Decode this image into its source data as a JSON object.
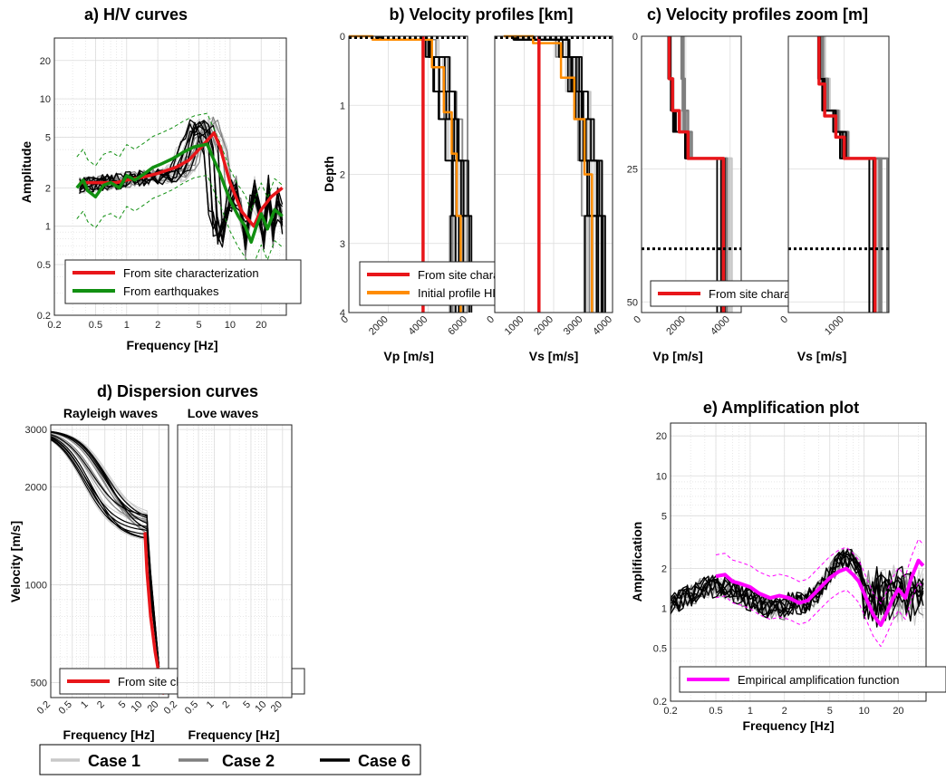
{
  "figure": {
    "legend": [
      {
        "label": "Case 1",
        "color": "#c8c8c8"
      },
      {
        "label": "Case 2",
        "color": "#7f7f7f"
      },
      {
        "label": "Case 6",
        "color": "#000000"
      }
    ]
  },
  "colors": {
    "site": "#e8161a",
    "earthquake": "#119011",
    "hhs": "#ff8c00",
    "empirical": "#ff00ff",
    "case1": "#c8c8c8",
    "case2": "#7f7f7f",
    "case6": "#000000"
  },
  "chart_data": [
    {
      "id": "hv",
      "type": "line",
      "title": "a) H/V curves",
      "xlabel": "Frequency [Hz]",
      "ylabel": "Amplitude",
      "xscale": "log",
      "yscale": "log",
      "xlim": [
        0.2,
        35
      ],
      "ylim": [
        0.2,
        30
      ],
      "xticks": [
        0.2,
        0.5,
        1,
        2,
        5,
        10,
        20
      ],
      "xticklabels": [
        "0.2",
        "0.5",
        "1",
        "2",
        "5",
        "10",
        "20"
      ],
      "yticks": [
        0.2,
        0.5,
        1,
        2,
        5,
        10,
        20
      ],
      "yticklabels": [
        "0.2",
        "0.5",
        "1",
        "2",
        "5",
        "10",
        "20"
      ],
      "grid": true,
      "legend_position": "bottom",
      "series": [
        {
          "name": "From site characterization",
          "color": "#e8161a",
          "x": [
            0.35,
            0.5,
            0.8,
            1.0,
            1.5,
            2,
            3,
            4,
            5,
            6,
            7,
            8,
            10,
            13,
            17,
            20,
            25,
            32
          ],
          "y": [
            2.2,
            2.2,
            2.2,
            2.3,
            2.45,
            2.6,
            2.9,
            3.3,
            4.0,
            4.7,
            5.4,
            4.2,
            2.2,
            1.3,
            1.0,
            1.35,
            1.7,
            2.0
          ]
        },
        {
          "name": "From earthquakes",
          "color": "#119011",
          "x": [
            0.33,
            0.38,
            0.42,
            0.5,
            0.6,
            0.7,
            0.85,
            1.0,
            1.2,
            1.5,
            1.8,
            2.2,
            2.8,
            3.5,
            4.5,
            6.0,
            7.0,
            8.0,
            9.0,
            10,
            12,
            14,
            16,
            18,
            20,
            23,
            27,
            32
          ],
          "y": [
            2.0,
            2.3,
            1.9,
            1.7,
            2.1,
            2.2,
            2.0,
            2.5,
            2.3,
            2.6,
            2.9,
            3.1,
            3.4,
            3.8,
            4.2,
            4.4,
            3.3,
            2.6,
            2.0,
            1.6,
            1.2,
            1.0,
            0.75,
            1.0,
            1.25,
            0.95,
            1.35,
            1.2
          ]
        }
      ]
    },
    {
      "id": "vp_km",
      "type": "line",
      "title": "b) Velocity profiles [km]",
      "xlabel": "Vp [m/s]",
      "ylabel": "Depth",
      "xlim": [
        0,
        6000
      ],
      "ylim": [
        0,
        4
      ],
      "xticks": [
        0,
        2000,
        4000,
        6000
      ],
      "xticklabels": [
        "0",
        "2000",
        "4000",
        "6000"
      ],
      "yticks": [
        0,
        1,
        2,
        3,
        4
      ],
      "yticklabels": [
        "0",
        "1",
        "2",
        "3",
        "4"
      ],
      "grid": true,
      "legend_position": "bottom",
      "series": [
        {
          "name": "From site characterization",
          "color": "#e8161a",
          "x": [
            3750,
            3750
          ],
          "y": [
            0,
            4
          ]
        },
        {
          "name": "Initial profile HHS",
          "color": "#ff8c00",
          "x": [
            0,
            1200,
            1200,
            4200,
            4200,
            4800,
            4800,
            5200,
            5200,
            5450,
            5450,
            5650,
            5650
          ],
          "y": [
            0,
            0,
            0.05,
            0.05,
            0.45,
            0.45,
            1.1,
            1.1,
            1.7,
            1.7,
            2.6,
            2.6,
            4
          ]
        }
      ]
    },
    {
      "id": "vs_km",
      "type": "line",
      "title": "",
      "xlabel": "Vs [m/s]",
      "ylabel": "",
      "xlim": [
        0,
        4000
      ],
      "ylim": [
        0,
        4
      ],
      "xticks": [
        0,
        1000,
        2000,
        3000,
        4000
      ],
      "xticklabels": [
        "0",
        "1000",
        "2000",
        "3000",
        "4000"
      ],
      "grid": true,
      "series": [
        {
          "name": "From site characterization",
          "color": "#e8161a",
          "x": [
            1500,
            1500
          ],
          "y": [
            0,
            4
          ]
        },
        {
          "name": "Initial profile HHS",
          "color": "#ff8c00",
          "x": [
            300,
            1300,
            1300,
            2250,
            2250,
            2700,
            2700,
            3050,
            3050,
            3300,
            3300
          ],
          "y": [
            0,
            0,
            0.1,
            0.1,
            0.6,
            0.6,
            1.2,
            1.2,
            2.0,
            2.0,
            4
          ]
        }
      ]
    },
    {
      "id": "vp_m",
      "type": "line",
      "title": "c) Velocity profiles zoom [m]",
      "xlabel": "Vp [m/s]",
      "ylabel": "",
      "xlim": [
        0,
        4500
      ],
      "ylim": [
        0,
        52
      ],
      "xticks": [
        0,
        2000,
        4000
      ],
      "xticklabels": [
        "0",
        "2000",
        "4000"
      ],
      "yticks": [
        0,
        25,
        50
      ],
      "yticklabels": [
        "0",
        "25",
        "50"
      ],
      "grid": true,
      "legend_position": "bottom",
      "series": [
        {
          "name": "From site characterization",
          "color": "#e8161a",
          "x": [
            1250,
            1250,
            1400,
            1400,
            1700,
            1700,
            2100,
            2100,
            3700,
            3700
          ],
          "y": [
            0,
            8,
            8,
            14,
            14,
            18,
            18,
            23,
            23,
            52
          ]
        }
      ]
    },
    {
      "id": "vs_m",
      "type": "line",
      "title": "",
      "xlabel": "Vs [m/s]",
      "ylabel": "",
      "xlim": [
        0,
        1800
      ],
      "ylim": [
        0,
        52
      ],
      "xticks": [
        0,
        1000
      ],
      "xticklabels": [
        "0",
        "1000"
      ],
      "grid": true,
      "series": [
        {
          "name": "From site characterization",
          "color": "#e8161a",
          "x": [
            550,
            550,
            650,
            650,
            850,
            850,
            1000,
            1000,
            1550,
            1550
          ],
          "y": [
            0,
            9,
            9,
            15,
            15,
            19,
            19,
            23,
            23,
            52
          ]
        }
      ]
    },
    {
      "id": "disp_r",
      "type": "line",
      "title": "d) Dispersion curves",
      "subtitle": "Rayleigh waves",
      "xlabel": "Frequency [Hz]",
      "ylabel": "Velocity [m/s]",
      "xscale": "log",
      "yscale": "log",
      "xlim": [
        0.2,
        30
      ],
      "ylim": [
        450,
        3100
      ],
      "xticks": [
        0.2,
        0.5,
        1,
        2,
        5,
        10,
        20
      ],
      "xticklabels": [
        "0.2",
        "0.5",
        "1",
        "2",
        "5",
        "10",
        "20"
      ],
      "yticks": [
        500,
        1000,
        2000,
        3000
      ],
      "yticklabels": [
        "500",
        "1000",
        "2000",
        "3000"
      ],
      "grid": true,
      "legend_position": "bottom",
      "series": [
        {
          "name": "From site characterization",
          "color": "#e8161a",
          "x": [
            11,
            12,
            14,
            17,
            20,
            25
          ],
          "y": [
            1450,
            1100,
            800,
            620,
            530,
            460
          ]
        }
      ]
    },
    {
      "id": "disp_l",
      "type": "line",
      "subtitle": "Love waves",
      "xlabel": "Frequency [Hz]",
      "xscale": "log",
      "yscale": "log",
      "xlim": [
        0.2,
        30
      ],
      "ylim": [
        450,
        3100
      ],
      "xticks": [
        0.2,
        0.5,
        1,
        2,
        5,
        10,
        20
      ],
      "xticklabels": [
        "0.2",
        "0.5",
        "1",
        "2",
        "5",
        "10",
        "20"
      ],
      "grid": true,
      "series": []
    },
    {
      "id": "amp",
      "type": "line",
      "title": "e) Amplification plot",
      "xlabel": "Frequency [Hz]",
      "ylabel": "Amplification",
      "xscale": "log",
      "yscale": "log",
      "xlim": [
        0.2,
        35
      ],
      "ylim": [
        0.2,
        25
      ],
      "xticks": [
        0.2,
        0.5,
        1,
        2,
        5,
        10,
        20
      ],
      "xticklabels": [
        "0.2",
        "0.5",
        "1",
        "2",
        "5",
        "10",
        "20"
      ],
      "yticks": [
        0.2,
        0.5,
        1,
        2,
        5,
        10,
        20
      ],
      "yticklabels": [
        "0.2",
        "0.5",
        "1",
        "2",
        "5",
        "10",
        "20"
      ],
      "grid": true,
      "legend_position": "bottom",
      "series": [
        {
          "name": "Empirical amplification function",
          "color": "#ff00ff",
          "x": [
            0.5,
            0.6,
            0.7,
            0.8,
            1.0,
            1.2,
            1.5,
            1.8,
            2.2,
            2.7,
            3.2,
            4,
            5,
            6,
            7,
            8,
            9,
            10,
            12,
            14,
            16,
            18,
            20,
            23,
            26,
            30,
            33
          ],
          "y": [
            1.75,
            1.8,
            1.6,
            1.55,
            1.45,
            1.3,
            1.2,
            1.25,
            1.2,
            1.1,
            1.15,
            1.4,
            1.7,
            1.9,
            2.0,
            1.8,
            1.6,
            1.3,
            0.9,
            0.75,
            0.95,
            1.2,
            1.4,
            1.2,
            1.7,
            2.3,
            2.1
          ]
        }
      ]
    }
  ]
}
